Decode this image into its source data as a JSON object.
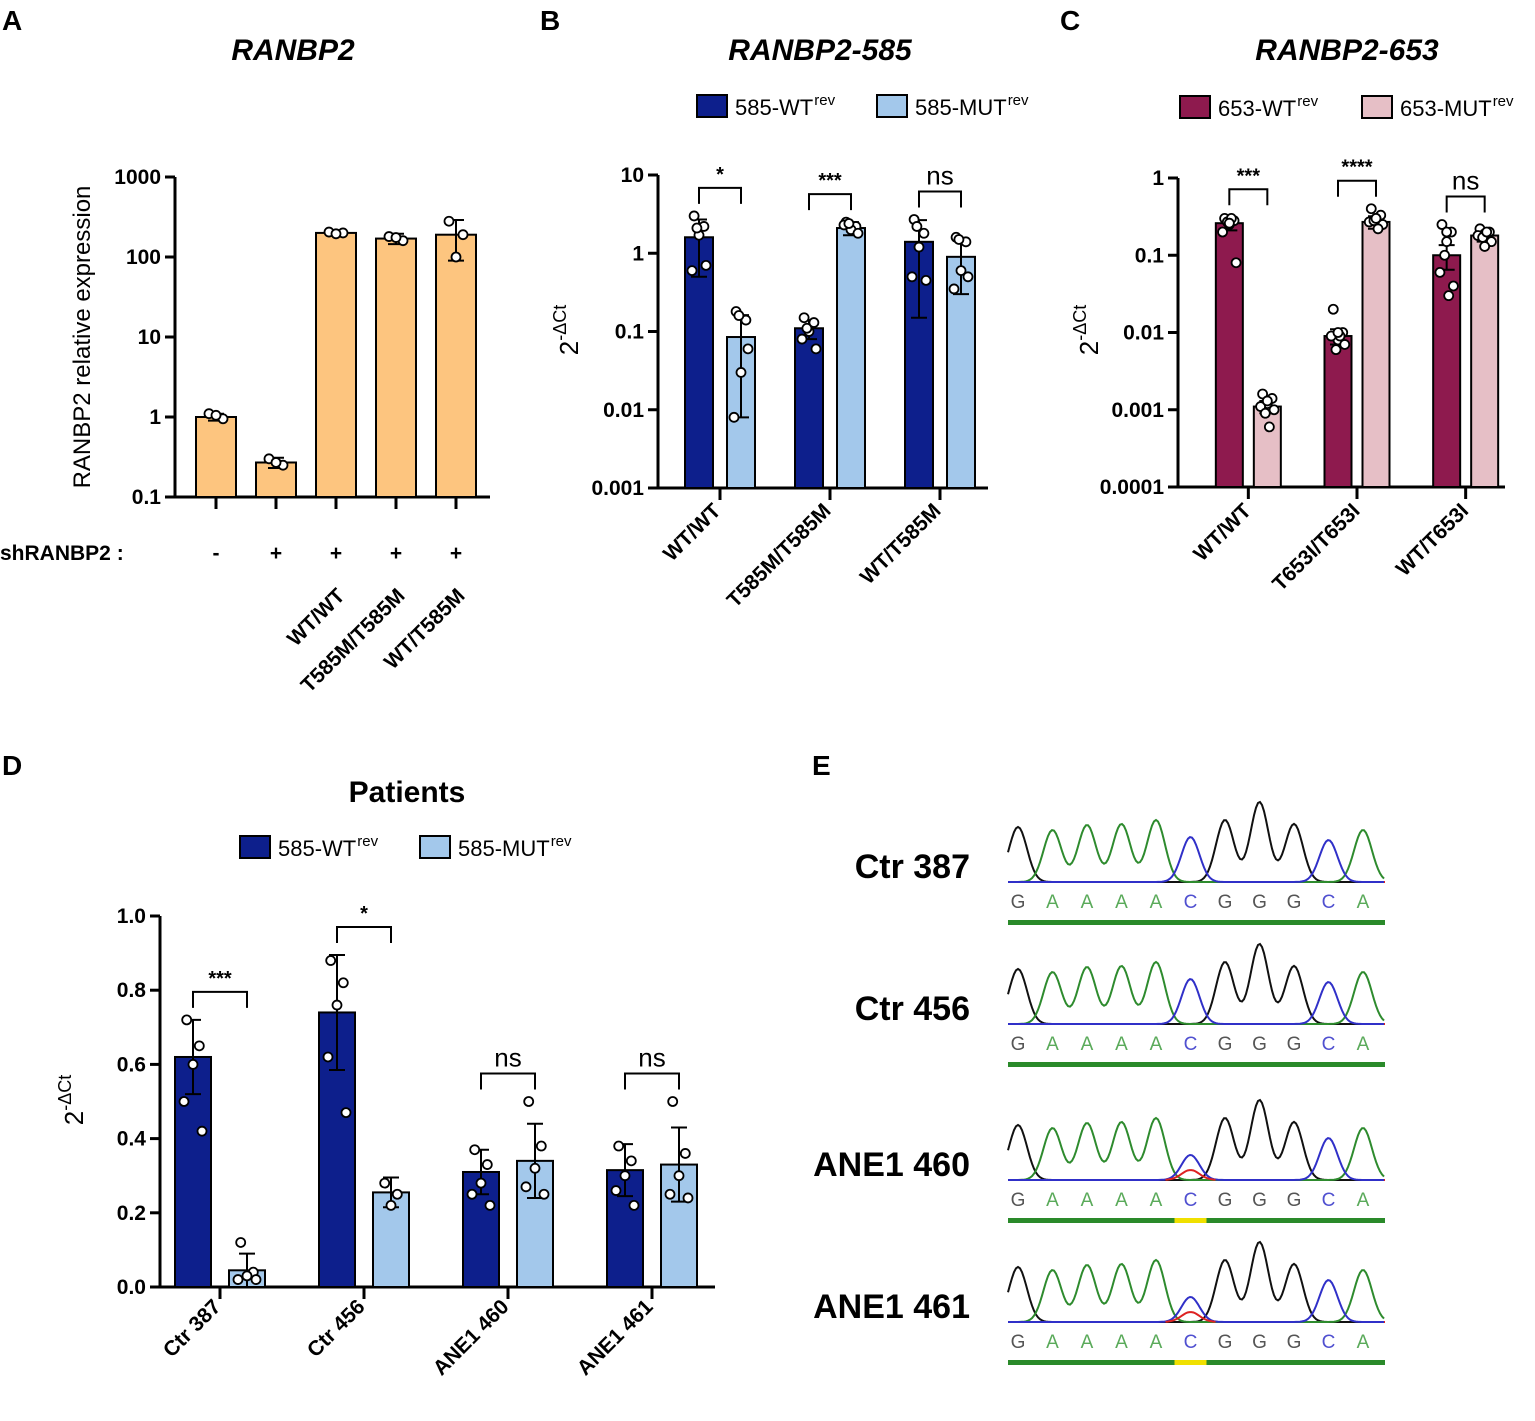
{
  "chart_data": [
    {
      "type": "bar",
      "panel_label": "A",
      "title": "RANBP2",
      "ylabel": "RANBP2 relative expression",
      "log": true,
      "ylim": [
        0.1,
        1000
      ],
      "yticks": [
        0.1,
        1,
        10,
        100,
        1000
      ],
      "categories": [
        null,
        null,
        "WT/WT",
        "T585M/T585M",
        "WT/T585M"
      ],
      "row_label": "shRANBP2 :",
      "row_values": [
        "-",
        "+",
        "+",
        "+",
        "+"
      ],
      "series": [
        {
          "color": "#fdc57f",
          "values": [
            1,
            0.27,
            200,
            170,
            190
          ],
          "errors": [
            0.1,
            0.04,
            15,
            25,
            100
          ],
          "points": [
            [
              1.1,
              0.95,
              1.05
            ],
            [
              0.3,
              0.25,
              0.27
            ],
            [
              205,
              200,
              195
            ],
            [
              180,
              160,
              175
            ],
            [
              280,
              190,
              100
            ]
          ]
        }
      ]
    },
    {
      "type": "bar",
      "panel_label": "B",
      "title": "RANBP2-585",
      "ylabel": "2",
      "ylabel_sup": "-ΔCt",
      "log": true,
      "ylim": [
        0.001,
        10
      ],
      "yticks": [
        0.001,
        0.01,
        0.1,
        1,
        10
      ],
      "categories": [
        "WT/WT",
        "T585M/T585M",
        "WT/T585M"
      ],
      "significance": [
        "*",
        "***",
        "ns"
      ],
      "series": [
        {
          "name": "585-WT",
          "superscript": "rev",
          "color": "#0d1f8c",
          "values": [
            1.6,
            0.11,
            1.4
          ],
          "errors": [
            1.1,
            0.03,
            1.25
          ],
          "points": [
            [
              3,
              2.2,
              1.7,
              0.6,
              0.7,
              2.1
            ],
            [
              0.15,
              0.13,
              0.1,
              0.08,
              0.06,
              0.11
            ],
            [
              2.7,
              1.8,
              1.2,
              0.5,
              0.45,
              2.2
            ]
          ]
        },
        {
          "name": "585-MUT",
          "superscript": "rev",
          "color": "#a3c8eb",
          "values": [
            0.085,
            2.1,
            0.9
          ],
          "errors": [
            0.077,
            0.4,
            0.6
          ],
          "points": [
            [
              0.18,
              0.14,
              0.03,
              0.008,
              0.06,
              0.16
            ],
            [
              2.5,
              2.2,
              2.0,
              2.3,
              1.8,
              2.4
            ],
            [
              1.6,
              1.4,
              0.6,
              0.35,
              0.5,
              1.5
            ]
          ]
        }
      ]
    },
    {
      "type": "bar",
      "panel_label": "C",
      "title": "RANBP2-653",
      "ylabel": "2",
      "ylabel_sup": "-ΔCt",
      "log": true,
      "ylim": [
        0.0001,
        1
      ],
      "yticks": [
        0.0001,
        0.001,
        0.01,
        0.1,
        1
      ],
      "categories": [
        "WT/WT",
        "T653I/T653I",
        "WT/T653I"
      ],
      "significance": [
        "***",
        "****",
        "ns"
      ],
      "series": [
        {
          "name": "653-WT",
          "superscript": "rev",
          "color": "#8e1a4e",
          "values": [
            0.26,
            0.009,
            0.1
          ],
          "errors": [
            0.05,
            0.002,
            0.035
          ],
          "points": [
            [
              0.3,
              0.28,
              0.25,
              0.2,
              0.08,
              0.27,
              0.3,
              0.26
            ],
            [
              0.02,
              0.01,
              0.008,
              0.009,
              0.007,
              0.006,
              0.009,
              0.01
            ],
            [
              0.25,
              0.2,
              0.15,
              0.06,
              0.04,
              0.1,
              0.03,
              0.2
            ]
          ]
        },
        {
          "name": "653-MUT",
          "superscript": "rev",
          "color": "#e6bfc6",
          "values": [
            0.0011,
            0.27,
            0.18
          ],
          "errors": [
            0.0002,
            0.05,
            0.03
          ],
          "points": [
            [
              0.0016,
              0.0014,
              0.0012,
              0.0011,
              0.001,
              0.0009,
              0.0006,
              0.0013
            ],
            [
              0.4,
              0.33,
              0.3,
              0.27,
              0.25,
              0.28,
              0.22,
              0.3
            ],
            [
              0.22,
              0.2,
              0.19,
              0.18,
              0.15,
              0.17,
              0.2,
              0.13
            ]
          ]
        }
      ]
    },
    {
      "type": "bar",
      "panel_label": "D",
      "title": "Patients",
      "ylabel": "2",
      "ylabel_sup": "-ΔCt",
      "log": false,
      "ylim": [
        0,
        1
      ],
      "yticks": [
        {
          "value": 0,
          "label": "0.0"
        },
        0.2,
        0.4,
        0.6,
        0.8,
        {
          "value": 1,
          "label": "1.0"
        }
      ],
      "categories": [
        "Ctr 387",
        "Ctr 456",
        "ANE1 460",
        "ANE1 461"
      ],
      "significance": [
        "***",
        "*",
        "ns",
        "ns"
      ],
      "series": [
        {
          "name": "585-WT",
          "superscript": "rev",
          "color": "#0d1f8c",
          "values": [
            0.62,
            0.74,
            0.31,
            0.315
          ],
          "errors": [
            0.1,
            0.155,
            0.06,
            0.07
          ],
          "points": [
            [
              0.72,
              0.65,
              0.6,
              0.5,
              0.42
            ],
            [
              0.88,
              0.82,
              0.76,
              0.62,
              0.47
            ],
            [
              0.37,
              0.33,
              0.28,
              0.25,
              0.22
            ],
            [
              0.38,
              0.34,
              0.3,
              0.26,
              0.22
            ]
          ]
        },
        {
          "name": "585-MUT",
          "superscript": "rev",
          "color": "#a3c8eb",
          "values": [
            0.045,
            0.255,
            0.34,
            0.33
          ],
          "errors": [
            0.045,
            0.04,
            0.1,
            0.1
          ],
          "points": [
            [
              0.12,
              0.04,
              0.03,
              0.02,
              0.02
            ],
            [
              0.28,
              0.25,
              0.22
            ],
            [
              0.5,
              0.38,
              0.32,
              0.27,
              0.25
            ],
            [
              0.5,
              0.36,
              0.3,
              0.25,
              0.24
            ]
          ]
        }
      ]
    }
  ],
  "sequencing": {
    "panel_label": "E",
    "bases": [
      "G",
      "A",
      "A",
      "A",
      "A",
      "C",
      "G",
      "G",
      "G",
      "C",
      "A"
    ],
    "samples": [
      {
        "name": "Ctr 387",
        "heterozygous": false
      },
      {
        "name": "Ctr 456",
        "heterozygous": false
      },
      {
        "name": "ANE1 460",
        "heterozygous": true
      },
      {
        "name": "ANE1 461",
        "heterozygous": true
      }
    ]
  }
}
